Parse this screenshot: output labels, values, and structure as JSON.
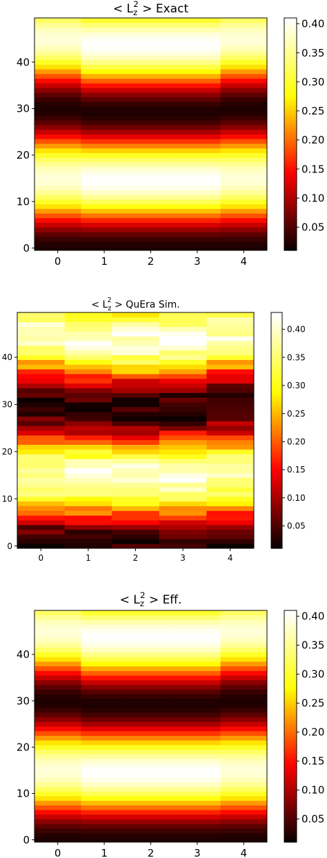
{
  "colormap": {
    "name": "hot",
    "stops": [
      "#0b0000",
      "#ff0000",
      "#ffff00",
      "#ffffff"
    ]
  },
  "chart_data": [
    {
      "type": "heatmap",
      "title_prefix": "< L",
      "title_sub": "z",
      "title_sup": "2",
      "title_suffix": " >  Exact",
      "x_ticks": [
        "0",
        "1",
        "2",
        "3",
        "4"
      ],
      "y_ticks": [
        "0",
        "10",
        "20",
        "30",
        "40"
      ],
      "rows": 50,
      "cols": 5,
      "colorbar_ticks": [
        "0.05",
        "0.10",
        "0.15",
        "0.20",
        "0.25",
        "0.30",
        "0.35",
        "0.40"
      ],
      "colorbar_range": [
        0.01,
        0.41
      ],
      "edge_profile": {
        "v0": 0.02,
        "a": 0.185,
        "w": 0.2094,
        "decay": 0,
        "noise": 0
      },
      "center_profile": {
        "v0": 0.02,
        "a": 0.195,
        "w": 0.215,
        "decay": 0,
        "noise": 0
      }
    },
    {
      "type": "heatmap",
      "title_prefix": "< L",
      "title_sub": "z",
      "title_sup": "2",
      "title_suffix": " > QuEra Sim.",
      "x_ticks": [
        "0",
        "1",
        "2",
        "3",
        "4"
      ],
      "y_ticks": [
        "0",
        "10",
        "20",
        "30",
        "40"
      ],
      "rows": 50,
      "cols": 5,
      "colorbar_ticks": [
        "0.05",
        "0.10",
        "0.15",
        "0.20",
        "0.25",
        "0.30",
        "0.35",
        "0.40"
      ],
      "colorbar_range": [
        0.01,
        0.43
      ],
      "edge_profile": {
        "v0": 0.02,
        "a": 0.185,
        "w": 0.2094,
        "decay": 0,
        "noise": 0.035
      },
      "center_profile": {
        "v0": 0.02,
        "a": 0.195,
        "w": 0.215,
        "decay": 0,
        "noise": 0.035
      }
    },
    {
      "type": "heatmap",
      "title_prefix": "< L",
      "title_sub": "z",
      "title_sup": "2",
      "title_suffix": " >  Eff.",
      "x_ticks": [
        "0",
        "1",
        "2",
        "3",
        "4"
      ],
      "y_ticks": [
        "0",
        "10",
        "20",
        "30",
        "40"
      ],
      "rows": 50,
      "cols": 5,
      "colorbar_ticks": [
        "0.05",
        "0.10",
        "0.15",
        "0.20",
        "0.25",
        "0.30",
        "0.35",
        "0.40"
      ],
      "colorbar_range": [
        0.01,
        0.41
      ],
      "edge_profile": {
        "v0": 0.02,
        "a": 0.185,
        "w": 0.2094,
        "decay": 0,
        "noise": 0
      },
      "center_profile": {
        "v0": 0.02,
        "a": 0.195,
        "w": 0.215,
        "decay": 0,
        "noise": 0
      }
    }
  ]
}
